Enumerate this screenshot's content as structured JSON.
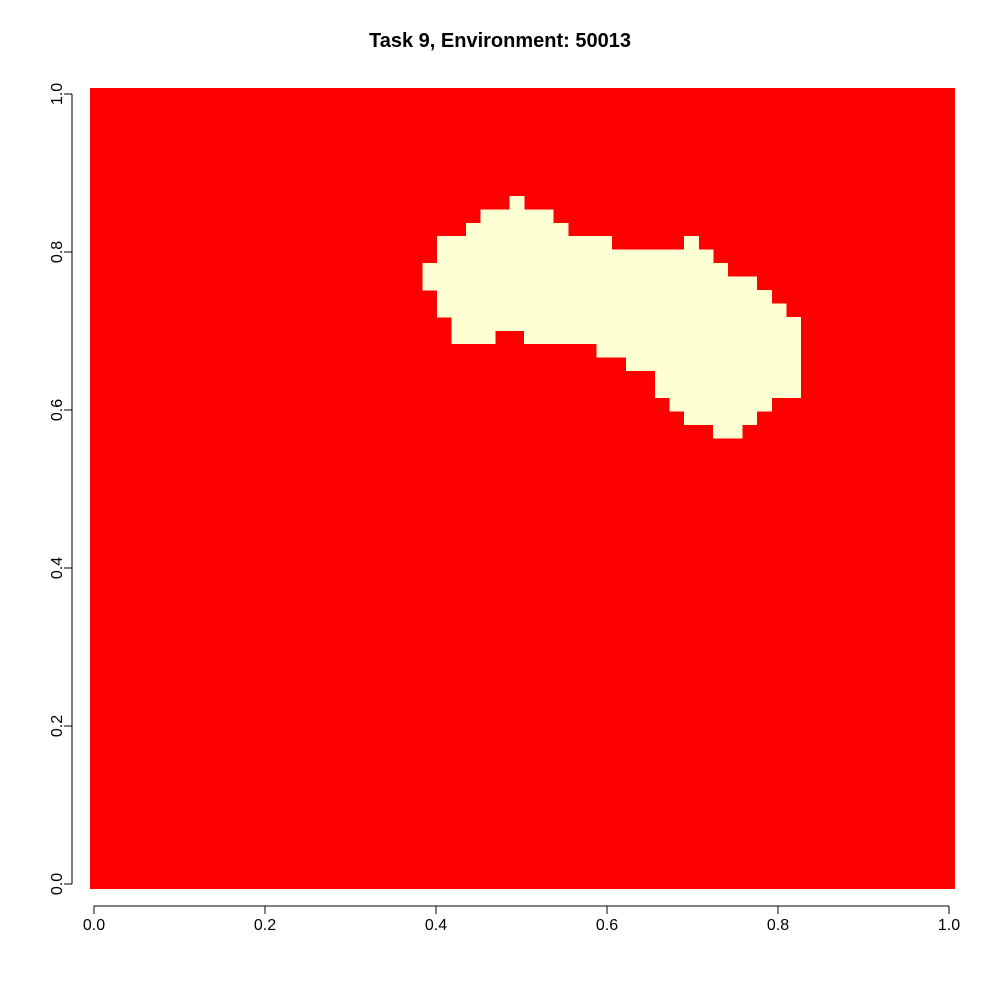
{
  "chart_data": {
    "type": "heatmap",
    "title": "Task 9, Environment: 50013",
    "xlabel": "",
    "ylabel": "",
    "xlim": [
      0,
      1
    ],
    "ylim": [
      0,
      1
    ],
    "x_ticks": [
      "0.0",
      "0.2",
      "0.4",
      "0.6",
      "0.8",
      "1.0"
    ],
    "y_ticks": [
      "0.0",
      "0.2",
      "0.4",
      "0.6",
      "0.8",
      "1.0"
    ],
    "grid": false,
    "background_color": "#ff0000",
    "region_color": "#ffffd4",
    "cell_size": 0.017,
    "region_rows": [
      {
        "y": [
          0.854,
          0.871
        ],
        "x_runs": [
          [
            0.486,
            0.503
          ]
        ]
      },
      {
        "y": [
          0.837,
          0.854
        ],
        "x_runs": [
          [
            0.452,
            0.537
          ]
        ]
      },
      {
        "y": [
          0.82,
          0.837
        ],
        "x_runs": [
          [
            0.435,
            0.554
          ]
        ]
      },
      {
        "y": [
          0.803,
          0.82
        ],
        "x_runs": [
          [
            0.401,
            0.605
          ],
          [
            0.69,
            0.707
          ]
        ]
      },
      {
        "y": [
          0.786,
          0.803
        ],
        "x_runs": [
          [
            0.401,
            0.724
          ]
        ]
      },
      {
        "y": [
          0.769,
          0.786
        ],
        "x_runs": [
          [
            0.384,
            0.741
          ]
        ]
      },
      {
        "y": [
          0.752,
          0.769
        ],
        "x_runs": [
          [
            0.384,
            0.775
          ]
        ]
      },
      {
        "y": [
          0.735,
          0.752
        ],
        "x_runs": [
          [
            0.401,
            0.792
          ]
        ]
      },
      {
        "y": [
          0.718,
          0.735
        ],
        "x_runs": [
          [
            0.401,
            0.809
          ]
        ]
      },
      {
        "y": [
          0.701,
          0.718
        ],
        "x_runs": [
          [
            0.418,
            0.826
          ]
        ]
      },
      {
        "y": [
          0.684,
          0.701
        ],
        "x_runs": [
          [
            0.418,
            0.469
          ],
          [
            0.503,
            0.826
          ]
        ]
      },
      {
        "y": [
          0.667,
          0.684
        ],
        "x_runs": [
          [
            0.588,
            0.826
          ]
        ]
      },
      {
        "y": [
          0.65,
          0.667
        ],
        "x_runs": [
          [
            0.622,
            0.826
          ]
        ]
      },
      {
        "y": [
          0.633,
          0.65
        ],
        "x_runs": [
          [
            0.656,
            0.826
          ]
        ]
      },
      {
        "y": [
          0.616,
          0.633
        ],
        "x_runs": [
          [
            0.656,
            0.826
          ]
        ]
      },
      {
        "y": [
          0.599,
          0.616
        ],
        "x_runs": [
          [
            0.673,
            0.792
          ]
        ]
      },
      {
        "y": [
          0.582,
          0.599
        ],
        "x_runs": [
          [
            0.69,
            0.775
          ]
        ]
      },
      {
        "y": [
          0.565,
          0.582
        ],
        "x_runs": [
          [
            0.724,
            0.758
          ]
        ]
      }
    ]
  }
}
